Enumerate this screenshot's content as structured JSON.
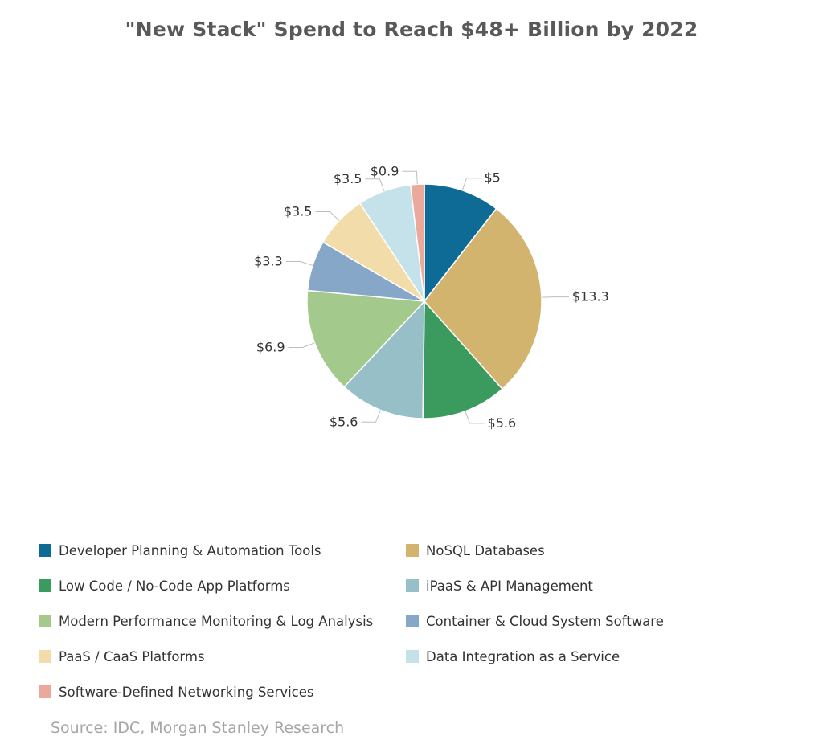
{
  "chart_data": {
    "type": "pie",
    "title": "\"New Stack\" Spend to Reach $48+ Billion by 2022",
    "source": "Source: IDC, Morgan Stanley Research",
    "legend_placement": "bottom",
    "slices": [
      {
        "name": "Developer Planning & Automation Tools",
        "value": 5,
        "label": "$5",
        "color": "#0e6b96"
      },
      {
        "name": "NoSQL Databases",
        "value": 13.3,
        "label": "$13.3",
        "color": "#d2b46f"
      },
      {
        "name": "Low Code / No-Code App Platforms",
        "value": 5.6,
        "label": "$5.6",
        "color": "#3b9b5f"
      },
      {
        "name": "iPaaS & API Management",
        "value": 5.6,
        "label": "$5.6",
        "color": "#96bfc8"
      },
      {
        "name": "Modern Performance Monitoring & Log Analysis",
        "value": 6.9,
        "label": "$6.9",
        "color": "#a4c98c"
      },
      {
        "name": "Container & Cloud System Software",
        "value": 3.3,
        "label": "$3.3",
        "color": "#87a7c8"
      },
      {
        "name": "PaaS / CaaS Platforms",
        "value": 3.5,
        "label": "$3.5",
        "color": "#f2dcaa"
      },
      {
        "name": "Data Integration as a Service",
        "value": 3.5,
        "label": "$3.5",
        "color": "#c5e1ea"
      },
      {
        "name": "Software-Defined Networking Services",
        "value": 0.9,
        "label": "$0.9",
        "color": "#eba99b"
      }
    ]
  }
}
